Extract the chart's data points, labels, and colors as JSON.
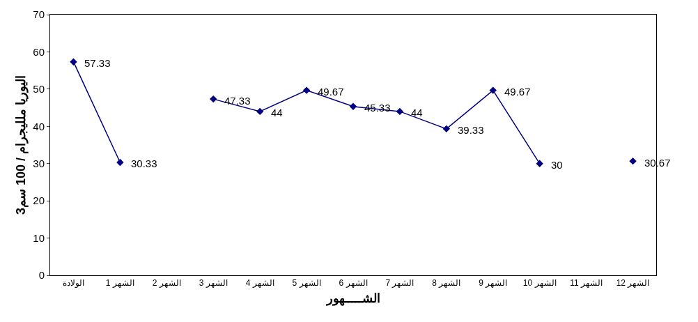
{
  "chart_data": {
    "type": "line",
    "xlabel": "الشـــــهور",
    "ylabel": "اليوريا ملليجرام / 100 سم3",
    "categories": [
      "الولادة",
      "الشهر 1",
      "الشهر 2",
      "الشهر 3",
      "الشهر 4",
      "الشهر 5",
      "الشهر 6",
      "الشهر 7",
      "الشهر 8",
      "الشهر 9",
      "الشهر 10",
      "الشهر 11",
      "الشهر 12"
    ],
    "series": [
      {
        "color": "#000080",
        "values": [
          57.33,
          30.33,
          null,
          47.33,
          44,
          49.67,
          45.33,
          44,
          39.33,
          49.67,
          30,
          null,
          30.67
        ]
      }
    ],
    "ylim": [
      0,
      70
    ],
    "yticks": [
      0,
      10,
      20,
      30,
      40,
      50,
      60,
      70
    ],
    "legend": false,
    "marker": "diamond",
    "line_style": "solid",
    "data_labels": true
  }
}
